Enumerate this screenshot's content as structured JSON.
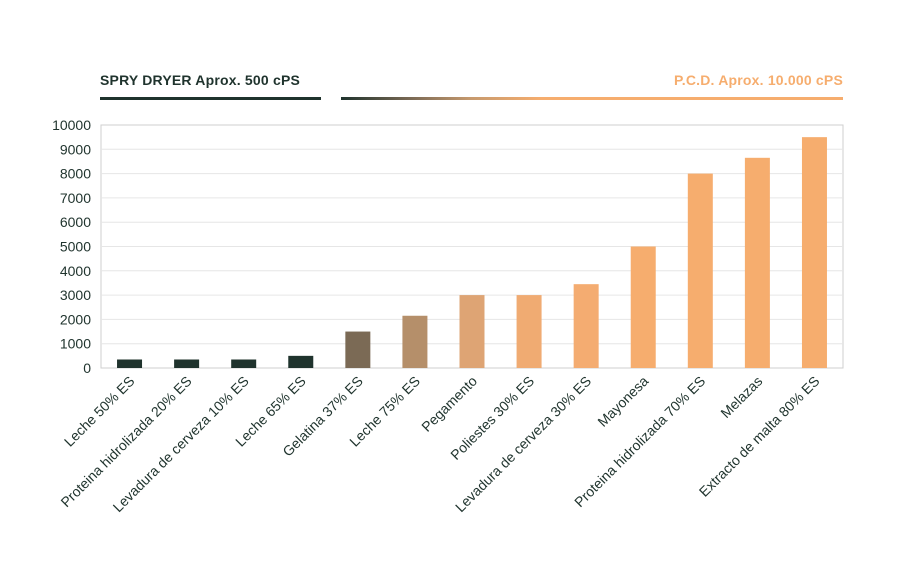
{
  "legend": {
    "left_label": "SPRY DRYER Aprox. 500 cPS",
    "right_label": "P.C.D. Aprox. 10.000 cPS",
    "left_color": "#1f332d",
    "right_color": "#f6ad6e"
  },
  "chart_data": {
    "type": "bar",
    "categories": [
      "Leche 50% ES",
      "Proteina hidrolizada 20% ES",
      "Levadura de cerveza 10% ES",
      "Leche 65% ES",
      "Gelatina 37% ES",
      "Leche 75% ES",
      "Pegamento",
      "Poliestes 30% ES",
      "Levadura de cerveza 30% ES",
      "Mayonesa",
      "Proteina hidrolizada 70% ES",
      "Melazas",
      "Extracto de malta 80% ES"
    ],
    "values": [
      350,
      350,
      350,
      500,
      1500,
      2150,
      3000,
      3000,
      3450,
      5000,
      8000,
      8650,
      9500
    ],
    "bar_colors": [
      "#1f332d",
      "#1f332d",
      "#1f332d",
      "#1f332d",
      "#7b6a55",
      "#b58f6a",
      "#dea474",
      "#f0ab72",
      "#f4ac71",
      "#f6ad6e",
      "#f6ad6e",
      "#f6ad6e",
      "#f6ad6e"
    ],
    "yticks": [
      0,
      1000,
      2000,
      3000,
      4000,
      5000,
      6000,
      7000,
      8000,
      9000,
      10000
    ],
    "ylim": [
      0,
      10000
    ],
    "grid": true,
    "title": "",
    "xlabel": "",
    "ylabel": ""
  }
}
